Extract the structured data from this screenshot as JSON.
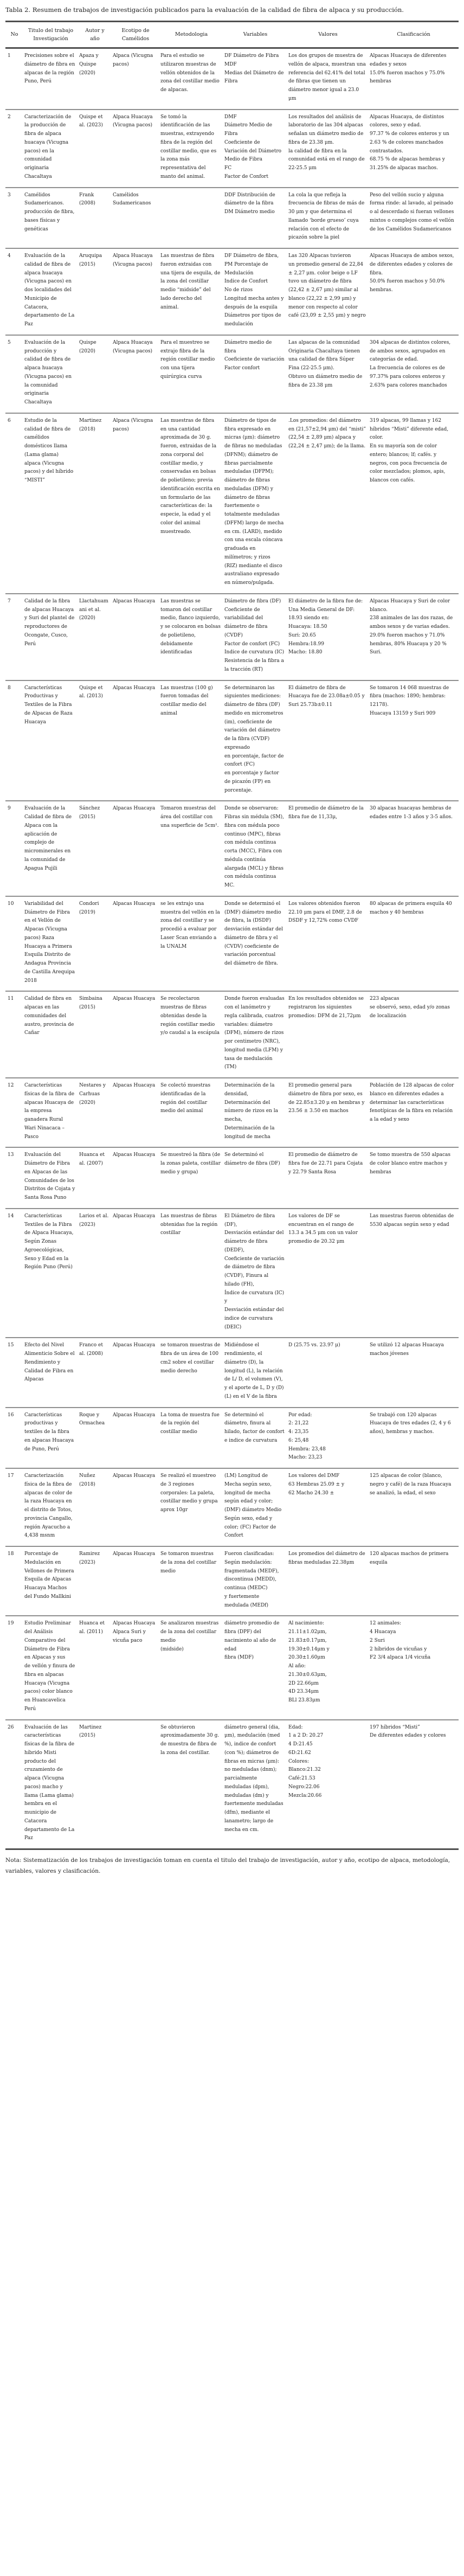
{
  "table": {
    "title": "Tabla 2. Resumen de trabajos de investigación publicados para la evaluación de la calidad de fibra de alpaca y su producción.",
    "columns": [
      "No",
      "Titulo del trabajo Investigación",
      "Autor y año",
      "Ecotipo de Camélidos",
      "Metodologia",
      "Variables",
      "Valores",
      "Clasificación"
    ],
    "rows": [
      {
        "no": "1",
        "titulo": "Precisiones sobre el diámetro de fibra en alpacas de la región Puno, Perú",
        "autor": "Apaza y Quispe (2020)",
        "ecotipo": "Alpaca (Vicugna pacos)",
        "metodologia": "Para el estudio se utilizaron muestras de vellón obtenidos de la zona del costillar medio de alpacas.",
        "variables": "DF Diámetro de Fibra\nMDF\nMedias del Diámetro de Fibra",
        "valores": "Los dos grupos de muestra de vellón de alpaca, muestran una referencia del 62.41% del total de fibras que tienen un diámetro menor igual a 23.0 μm",
        "clasificacion": "Alpacas Huacaya de diferentes edades y sexos\n15.0% fueron machos y 75.0% hembras"
      },
      {
        "no": "2",
        "titulo": "Caracterización de la producción de fibra de alpaca huacaya (Vicugna pacos) en la comunidad originaria Chacaltaya",
        "autor": "Quispe et al. (2023)",
        "ecotipo": "Alpaca Huacaya (Vicugna pacos)",
        "metodologia": "Se tomó la identificación de las muestras, extrayendo fibra de la región del costillar medio, que es la zona más representativa del manto del animal.",
        "variables": "DMF\nDiámetro Medio de Fibra\nCoeficiente de Variación del Diámetro Medio de Fibra\nFC\nFactor de Confort",
        "valores": "Los resultados del análisis de laboratorio de las 304 alpacas señalan un diámetro medio de fibra de 23.38 μm.\nla calidad de fibra en la comunidad está en el rango de 22-25.5 μm",
        "clasificacion": "Alpacas Huacaya, de distintos colores, sexo y edad.\n97.37 % de colores enteros y un 2.63 % de colores manchados contrastados.\n68.75 % de alpacas hembras y 31.25% de alpacas machos."
      },
      {
        "no": "3",
        "titulo": "Camélidos Sudamericanos. producción de fibra, bases físicas y genéticas",
        "autor": "Frank (2008)",
        "ecotipo": "Camélidos Sudamericanos",
        "metodologia": "",
        "variables": "DDF Distribución de diámetro de la fibra\nDM Diámetro medio",
        "valores": "La cola la que refleja la frecuencia de fibras de más de 30 μm y que determina el llamado ‘borde grueso’ cuya relación con el efecto de picazón sobre la piel",
        "clasificacion": "Peso del vellón sucio y alguna forma rinde: al lavado, al peinado o al descerdado si fueran vellones mixtos o complejos como el vellón de los Camélidos Sudamericanos"
      },
      {
        "no": "4",
        "titulo": "Evaluación de la calidad de fibra de alpaca huacaya (Vicugna pacos) en dos localidades del Municipio de Catacora, departamento de La Paz",
        "autor": "Aruquipa (2015)",
        "ecotipo": "Alpaca Huacaya (Vicugna pacos)",
        "metodologia": "Las muestras de fibra fueron extraidas con una tijera de esquila, de la zona del costillar medio “midside” del lado derecho del animal.",
        "variables": "DF Diámetro de fibra, PM Porcentaje de Medulación\nIndice de Confort\nNo de rizos\nLongitud mecha antes y después de la esquila\nDiámetros por tipos de medulación",
        "valores": "Las 320 Alpacas tuvieron\nun promedio general de 22,84 ± 2,27 μm. color beige o LF tuvo un diámetro de fibra (22,42 ± 2,67 μm) similar al blanco (22,22 ± 2,99 μm) y menor con respecto al color café (23,09 ± 2,55 μm) y negro",
        "clasificacion": "Alpacas Huacaya de ambos sexos, de diferentes edades y colores de fibra.\n50.0% fueron machos y 50.0% hembras."
      },
      {
        "no": "5",
        "titulo": "Evaluación de la producción y calidad de fibra de alpaca huacaya (Vicugna pacos) en la comunidad originaria Chacaltaya",
        "autor": "Quispe (2020)",
        "ecotipo": "Alpaca Huacaya (Vicugna pacos)",
        "metodologia": "Para el muestreo se extrajo fibra de la región costillar medio con una tijera quirúrgica curva",
        "variables": "Diámetro medio de fibra\nCoeficiente de variación\nFactor confort",
        "valores": "Las alpacas de la comunidad Originaria Chacaltaya tienen una calidad de fibra Súper Fina (22-25.5 μm).\nObtuvo un diámetro medio de fibra de 23.38 μm",
        "clasificacion": "304 alpacas de distintos colores, de ambos sexos, agrupados en categorías de edad.\nLa frecuencia de colores es de 97.37% para colores enteros y 2.63% para colores manchados"
      },
      {
        "no": "6",
        "titulo": "Estudio de la calidad de fibra de camélidos domésticos llama (Lama glama) alpaca (Vicugna pacos) y del híbrido “MISTI”",
        "autor": "Martinez (2018)",
        "ecotipo": "Alpaca (Vicugna pacos)",
        "metodologia": "Las muestras de fibra en una cantidad aproximada de 30 g. fueron, extraidas de la zona corporal del costillar medio, y conservadas en bolsas de polietileno; previa identificación escrita en un formulario de las características de: la especie, la edad y el color del animal muestreado.",
        "variables": "Diámetro de tipos de fibra expresado en micras (μm): diámetro de fibras no meduladas (DFNM); diámetro de fibras parcialmente meduladas (DFPM); diámetro de fibras meduladas (DFM) y diámetro de fibras fuertemente o totalmente meduladas (DFFM) largo de mecha en cm. (LARD), medido con una escala cóncava graduada en milímetros; y rizos (RIZ) mediante el disco australiano expresado en número/pulgada.",
        "valores": ".Los promedios: del diámetro en (21,57±2,94 μm) del “misti”\n(22,54 ± 2,89 μm) alpaca y\n(22,24 ± 2,47 μm); de la llama.",
        "clasificacion": "319 alpacas, 99 llamas y 162 híbridos “Misti” diferente edad, color.\nEn su mayoría son de color entero; blancos; lf; cafés. y negros, con poca frecuencia de color mezclados; plomos, apis, blancos con cafés."
      },
      {
        "no": "7",
        "titulo": "Calidad de la fibra de alpacas Huacaya y Suri del plantel de reproductores de Ocongate, Cusco, Perú",
        "autor": "Llactahuamani et al. (2020)",
        "ecotipo": "Alpacas Huacaya",
        "metodologia": "Las muestras se tomaron del costillar medio, flanco izquierdo, y se colocaron en bolsas de polietileno, debidamente identificadas",
        "variables": "Diámetro de fibra (DF)\nCoeficiente de variabilidad del diámetro de fibra (CVDF)\nFactor de confort (FC)\nIndice de curvatura (IC)\nResistencia de la fibra a la tracción (RT)",
        "valores": "El diámetro de la fibra fue de:\nUna Media General de DF: 18.93 siendo en:\nHuacaya: 18.50\nSuri: 20.65\nHembra:18.99\nMacho: 18.80",
        "clasificacion": "Alpacas Huacaya y Suri de color blanco.\n238 animales de las dos razas, de ambos sexos y de varias edades.\n29.0% fueron machos y 71.0% hembras, 80% Huacaya y 20 % Suri."
      },
      {
        "no": "8",
        "titulo": "Características Productivas y Textiles de la Fibra de Alpacas de Raza Huacaya",
        "autor": "Quispe et al. (2013)",
        "ecotipo": "Alpacas Huacaya",
        "metodologia": "Las muestras (100 g) fueron tomadas del costillar medio del animal",
        "variables": "Se determinaron las siguientes mediciones: diámetro de fibra (DF) medido en micrometros (im), coeficiente de variación del diámetro de la fibra (CVDF) expresado\nen porcentaje, factor de confort (FC)\nen porcentaje y factor de picazón (FP) en porcentaje.",
        "valores": "El diámetro de fibra de Huacaya fue de 23.08a±0.05 y Suri 25.73b±0.11",
        "clasificacion": "Se tomaron 14 068 muestras de fibra (machos: 1890; hembras: 12178).\nHuacaya 13159 y Suri 909"
      },
      {
        "no": "9",
        "titulo": "Evaluación de la Calidad de fibra de Alpaca con la aplicación de complejo de microminerales en la comunidad de Apagua Pujili",
        "autor": "Sánchez (2015)",
        "ecotipo": "Alpacas Huacaya",
        "metodologia": "Tomaron muestras del área del costillar con una superficie de 5cm².",
        "variables": "Donde se observaron:\nFibras sin médula (SM), fibra con médula poco continuo (MPC), fibras con médula continua corta (MCC), Fibra con médula continúa alargada (MCL) y fibras con médula continua MC.",
        "valores": "El promedio de diámetro de la fibra fue de 11,33μ,",
        "clasificacion": "30 alpacas huacayas hembras de edades entre 1-3 años y 3-5 años."
      },
      {
        "no": "10",
        "titulo": "Variabilidad del Diámetro de Fibra en el Vellón de Alpacas (Vicugna pacos) Raza Huacaya a Primera Esquila Distrito de Andagua Provincia de Castilla Arequipa 2018",
        "autor": "Condori (2019)",
        "ecotipo": "Alpacas Huacaya",
        "metodologia": "se les extrajo una muestra del vellón en la zona del costillar y se procedió a evaluar por Laser Scan enviando a la UNALM",
        "variables": "Donde se determinó el (DMF) diámetro medio de fibra, la (DSDF) desviación estándar del diámetro de fibra y el (CVDV) coeficiente de variación porcentual del diámetro de fibra.",
        "valores": "Los valores obtenidos fueron 22.10 μm para el DMF, 2.8 de DSDF y 12,72% como CVDF",
        "clasificacion": "80 alpacas de primera esquila 40 machos y 40 hembras"
      },
      {
        "no": "11",
        "titulo": "Calidad de fibra en alpacas en las comunidades del austro, provincia de Cañar",
        "autor": "Simbaina (2015)",
        "ecotipo": "Alpacas Huacaya",
        "metodologia": "Se recolectaron muestras de fibras obtenidas desde la región costillar medio y/o caudal a la escápula",
        "variables": "Donde fueron evaluadas con el lanómetro y regla calibrada, cuatros variables: diámetro (DFM), número de rizos por centimetro (NRC), longitud media (LFM) y tasa de medulación (TM)",
        "valores": "En los resultados obtenidos se registraron los siguientes promedios: DFM de 21,72μm",
        "clasificacion": "223 alpacas\nse observó, sexo, edad y/o zonas de localización"
      },
      {
        "no": "12",
        "titulo": "Características físicas de la fibra de alpacas Huacaya de la empresa ganadera Rural Wari Ninacaca – Pasco",
        "autor": "Nestares y Carhuas (2020)",
        "ecotipo": "Alpacas Huacaya",
        "metodologia": "Se colectó muestras identificadas de la región del costillar medio del animal",
        "variables": "Determinación de la densidad,\nDeterminación del número de rizos en la mecha,\nDeterminación de la longitud de mecha",
        "valores": "El promedio general para diámetro de fibra por sexo, es de 22.85±3.20 μ en hembras y 23.56 ± 3.50 en machos",
        "clasificacion": "Población de 128 alpacas de color blanco en diferentes edades a determinar las características fenotípicas de la fibra en relación a la edad y sexo"
      },
      {
        "no": "13",
        "titulo": "Evaluación del Diámetro de Fibra en Alpacas de las Comunidades de los Distritos de Cojata y Santa Rosa Puno",
        "autor": "Huanca et al. (2007)",
        "ecotipo": "Alpacas Huacaya",
        "metodologia": "Se muestreó la fibra (de la zonas paleta, costillar medio y grupa)",
        "variables": "Se determinó el diámetro de fibra (DF)",
        "valores": "El promedio de diámetro de fibra fue de 22.71 para Cojata y 22.79 Santa Rosa",
        "clasificacion": "Se tomo muestra de 550 alpacas de color blanco entre machos y hembras"
      },
      {
        "no": "14",
        "titulo": "Características Textiles de la Fibra de Alpaca Huacaya, Según Zonas Agroecológicas, Sexo y Edad en la Región Puno (Perú)",
        "autor": "Larios et al. (2023)",
        "ecotipo": "Alpacas Huacaya",
        "metodologia": "Las muestras de fibras obtenidas fue la región costillar",
        "variables": "El Diámetro de fibra (DF),\nDesviación estándar del diámetro de fibra (DEDF),\nCoeficiente de variación de diámetro de fibra (CVDF), Finura al hilado (FH),\nÍndice de curvatura (IC) y\nDesviación estándar del indice de curvatura (DEIC)",
        "valores": "Los valores de DF se encuentran en el rango de 13.3 a 34.5 μm con un valor promedio de 20.32 μm",
        "clasificacion": "Las muestras fueron obtenidas de 5530 alpacas según sexo y edad"
      },
      {
        "no": "15",
        "titulo": "Efecto del Nivel Alimenticio Sobre el Rendimiento y Calidad de Fibra en Alpacas",
        "autor": "Franco et al. (2008)",
        "ecotipo": "Alpacas Huacaya",
        "metodologia": "se tomaron muestras de fibra de un área de 100 cm2 sobre el costillar medio derecho",
        "variables": "Midiéndose el rendimiento, el diámetro (D), la longitud (L), la relación de L/ D, el volumen (V), y el aporte de L, D y (D)(L) en el V de la fibra",
        "valores": "D (25.75 vs. 23.97 μ)",
        "clasificacion": "Se utilizó 12 alpacas Huacaya machos jóvenes"
      },
      {
        "no": "16",
        "titulo": "Características productivas y textiles de la fibra en alpacas Huacaya de Puno, Perú",
        "autor": "Roque y Ormachea",
        "ecotipo": "Alpacas Huacaya",
        "metodologia": "La toma de muestra fue de la región del costillar medio",
        "variables": "Se determinó el diámetro, finura al hilado, factor de confort e indice de curvatura",
        "valores": "Por edad:\n2: 21,22\n4: 23,35\n6: 25,48\nHembra: 23,48\nMacho: 23,23",
        "clasificacion": "Se trabajó con 120 alpacas Huacaya de tres edades (2, 4 y 6 años), hembras y machos."
      },
      {
        "no": "17",
        "titulo": "Caracterización física de la fibra de alpacas de color de la raza Huacaya en el distrito de Totos, provincia Cangallo, región Ayacucho a 4,438 msnm",
        "autor": "Nuñez (2018)",
        "ecotipo": "Alpacas Huacaya",
        "metodologia": "Se realizó el muestreo de 3 regiones corporales: La paleta, costillar medio y grupa aprox 10gr",
        "variables": "(LM) Longitud de Mecha según sexo, longitud de mecha según edad y color; (DMF) diámetro Medio Según sexo, edad y color; (FC) Factor de Confort",
        "valores": "Los valores del DMF\n63 Hembras 25.09 ± y\n62 Macho 24.30 ±",
        "clasificacion": "125 alpacas de color (blanco, negro y café) de la raza Huacaya se analizó, la edad, el sexo"
      },
      {
        "no": "18",
        "titulo": "Porcentaje de Medulación en Vellones de Primera Esquila de Alpacas Huacaya Machos del Fundo Mallkini",
        "autor": "Ramirez (2023)",
        "ecotipo": "Alpacas Huacaya",
        "metodologia": "Se tomaron muestras de la zona del costillar medio",
        "variables": "Fueron clasificadas:\nSegún medulación: fragmentada (MEDF),\ndiscontinua (MEDD),\ncontinua (MEDC)\ny fuertemente medulada (MEDf)",
        "valores": "Los promedios del diámetro de fibras meduladas 22.38μm",
        "clasificacion": "120 alpacas machos de primera esquila"
      },
      {
        "no": "19",
        "titulo": "Estudio Preliminar del Análisis Comparativo del Diámetro de Fibra en Alpacas y sus\nde vellón y finura de fibra en alpacas Huacaya (Vicugna pacos) color blanco en Huancavelica Perú",
        "autor": "Huanca et al. (2011)",
        "ecotipo": "Alpacas Huacaya\nAlpaca Suri y vicuña paco",
        "metodologia": "Se analizaron muestras de la zona del costillar medio\n(midside)",
        "variables": "diámetro promedio de fibra (DPF) del nacimiento al año de edad\nfibra (MDF)",
        "valores": "Al nacimiento:\n21.11±1.02μm,\n21.83±0.17μm,\n19.30±0.14μm y\n20.30±1.60μm\nAl año:\n21.30±0.63μm,\n2D 22.66μm\n4D 23.34μm\nBLl 23.83μm",
        "clasificacion": "12 animales:\n4 Huacaya\n2 Suri\n2 híbridos de vicuñas y\nF2 3/4 alpaca 1/4 vicuña"
      },
      {
        "no": "26",
        "titulo": "Evaluación de las características físicas de la fibra de híbrido Misti producto del cruzamiento de alpaca (Vicugna pacos) macho y llama (Lama glama) hembra en el municipio de Catacora departamento de La Paz",
        "autor": "Martinez (2015)",
        "ecotipo": "",
        "metodologia": "Se obtuvieron aproximadamente 30 g. de muestra de fibra de la zona del costillar.",
        "variables": "diámetro general (dia, μm), medulación (med %), indice de confort (con %); diámetros de fibras en micras (μm): no meduladas (dnm); parcialmente meduladas (dpm), meduladas (dm) y fuertemente meduladas (dfm), mediante el lanametro; largo de mecha en cm.",
        "valores": "Edad:\n1 a 2 D: 20.27\n4 D:21.45\n6D:21.62\nColores:\nBlanco:21.32\nCafé:21.53\nNegro:22.06\nMezcla:20.66",
        "clasificacion": "197 híbridos “Misti”\nDe diferentes edades y colores"
      }
    ],
    "note": "Nota: Sistematización de los trabajos de investigación toman en cuenta el titulo del trabajo de investigación, autor y año, ecotipo de alpaca, metodología, variables, valores y clasificación."
  }
}
